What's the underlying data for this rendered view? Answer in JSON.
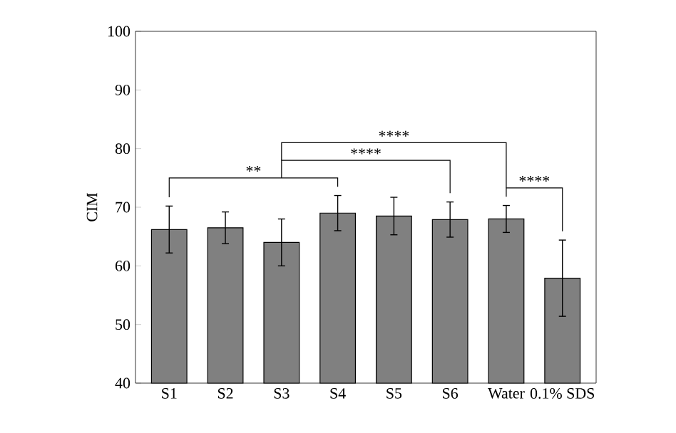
{
  "chart_data": {
    "type": "bar",
    "ylabel": "CIM",
    "categories": [
      "S1",
      "S2",
      "S3",
      "S4",
      "S5",
      "S6",
      "Water",
      "0.1% SDS"
    ],
    "values": [
      66.2,
      66.5,
      64.0,
      69.0,
      68.5,
      67.9,
      68.0,
      57.9
    ],
    "errors": [
      4.0,
      2.7,
      4.0,
      3.0,
      3.2,
      3.0,
      2.3,
      6.5
    ],
    "color": "#808080",
    "ylim": [
      40,
      100
    ],
    "yticks": [
      40,
      50,
      60,
      70,
      80,
      90,
      100
    ],
    "annotations": [
      "**",
      "****",
      "****",
      "****"
    ]
  }
}
